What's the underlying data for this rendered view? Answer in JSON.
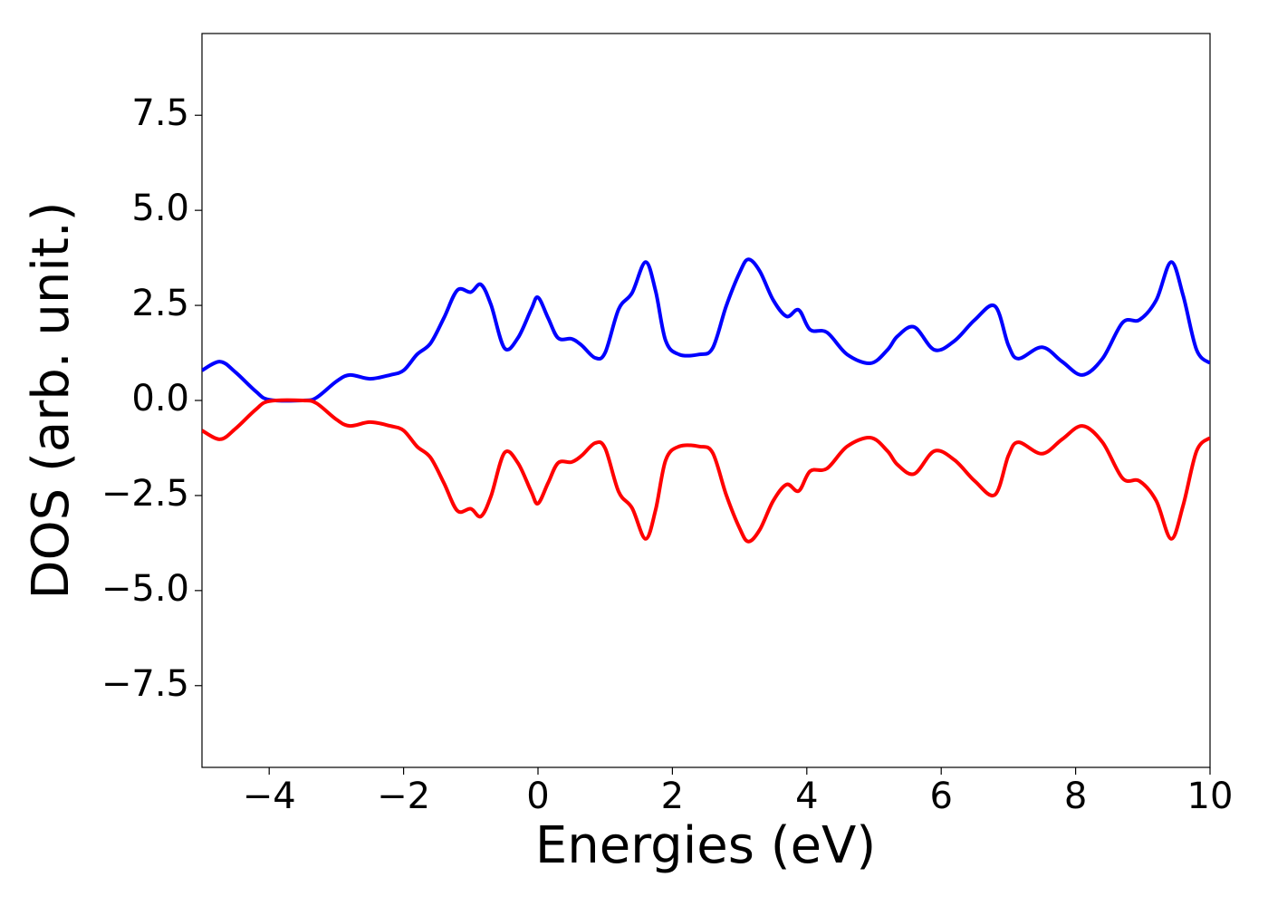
{
  "chart_data": {
    "type": "line",
    "xlabel": "Energies (eV)",
    "ylabel": "DOS (arb. unit.)",
    "x": [
      -5.0,
      -4.73,
      -4.5,
      -4.2,
      -4.0,
      -3.5,
      -3.3,
      -3.0,
      -2.8,
      -2.5,
      -2.2,
      -2.0,
      -1.8,
      -1.6,
      -1.4,
      -1.2,
      -1.0,
      -0.85,
      -0.7,
      -0.5,
      -0.3,
      -0.1,
      0.0,
      0.15,
      0.3,
      0.5,
      0.65,
      0.85,
      1.0,
      1.2,
      1.4,
      1.6,
      1.75,
      1.9,
      2.1,
      2.4,
      2.6,
      2.8,
      3.0,
      3.13,
      3.3,
      3.5,
      3.7,
      3.88,
      4.05,
      4.3,
      4.6,
      4.95,
      5.2,
      5.35,
      5.6,
      5.9,
      6.2,
      6.5,
      6.8,
      7.0,
      7.15,
      7.5,
      7.8,
      8.1,
      8.4,
      8.7,
      8.95,
      9.2,
      9.42,
      9.6,
      9.8,
      10.0
    ],
    "series": [
      {
        "color": "#0000ff",
        "values": [
          0.79,
          1.02,
          0.74,
          0.24,
          0.02,
          0.0,
          0.07,
          0.5,
          0.67,
          0.57,
          0.67,
          0.79,
          1.21,
          1.5,
          2.17,
          2.9,
          2.85,
          3.05,
          2.52,
          1.38,
          1.64,
          2.4,
          2.71,
          2.17,
          1.64,
          1.62,
          1.45,
          1.12,
          1.26,
          2.4,
          2.83,
          3.64,
          2.88,
          1.57,
          1.21,
          1.21,
          1.38,
          2.48,
          3.36,
          3.71,
          3.4,
          2.64,
          2.21,
          2.38,
          1.86,
          1.79,
          1.21,
          0.98,
          1.33,
          1.69,
          1.93,
          1.33,
          1.57,
          2.12,
          2.48,
          1.45,
          1.1,
          1.4,
          1.02,
          0.67,
          1.1,
          2.05,
          2.12,
          2.64,
          3.64,
          2.76,
          1.33,
          0.98
        ]
      },
      {
        "color": "#ff0000",
        "values": [
          -0.79,
          -1.02,
          -0.74,
          -0.24,
          -0.02,
          0.0,
          -0.07,
          -0.5,
          -0.67,
          -0.57,
          -0.67,
          -0.79,
          -1.21,
          -1.5,
          -2.17,
          -2.9,
          -2.85,
          -3.05,
          -2.52,
          -1.38,
          -1.64,
          -2.4,
          -2.71,
          -2.17,
          -1.64,
          -1.62,
          -1.45,
          -1.12,
          -1.26,
          -2.4,
          -2.83,
          -3.64,
          -2.88,
          -1.57,
          -1.21,
          -1.21,
          -1.38,
          -2.48,
          -3.36,
          -3.71,
          -3.4,
          -2.64,
          -2.21,
          -2.38,
          -1.86,
          -1.79,
          -1.21,
          -0.98,
          -1.33,
          -1.69,
          -1.93,
          -1.33,
          -1.57,
          -2.12,
          -2.48,
          -1.45,
          -1.1,
          -1.4,
          -1.02,
          -0.67,
          -1.1,
          -2.05,
          -2.12,
          -2.64,
          -3.64,
          -2.76,
          -1.33,
          -0.98
        ]
      }
    ],
    "xlim": [
      -5,
      10
    ],
    "xticks": [
      {
        "value": -4,
        "label": "−4"
      },
      {
        "value": -2,
        "label": "−2"
      },
      0,
      2,
      4,
      6,
      8,
      10
    ],
    "ylim": [
      -9.65,
      9.65
    ],
    "yticks": [
      {
        "value": -7.5,
        "label": "−7.5"
      },
      {
        "value": -5,
        "label": "−5.0"
      },
      {
        "value": -2.5,
        "label": "−2.5"
      },
      {
        "value": 0,
        "label": "0.0"
      },
      2.5,
      {
        "value": 5,
        "label": "5.0"
      },
      7.5
    ],
    "grid": false
  }
}
